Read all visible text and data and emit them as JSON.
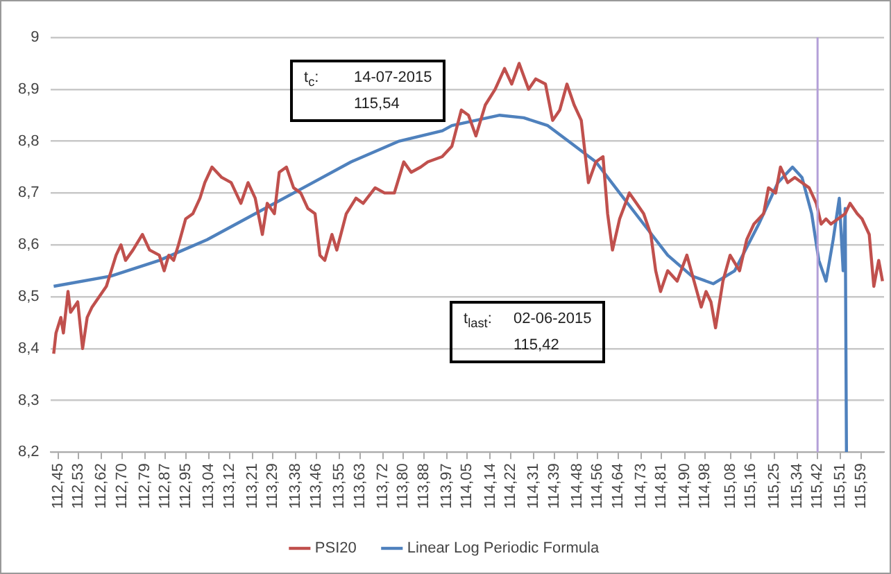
{
  "chart_data": {
    "type": "line",
    "xlim": [
      112.42,
      115.68
    ],
    "ylim": [
      8.2,
      9
    ],
    "xticks": [
      {
        "value": 112.45,
        "label": "112,45"
      },
      {
        "value": 112.53,
        "label": "112,53"
      },
      {
        "value": 112.62,
        "label": "112,62"
      },
      {
        "value": 112.7,
        "label": "112,70"
      },
      {
        "value": 112.79,
        "label": "112,79"
      },
      {
        "value": 112.87,
        "label": "112,87"
      },
      {
        "value": 112.95,
        "label": "112,95"
      },
      {
        "value": 113.04,
        "label": "113,04"
      },
      {
        "value": 113.12,
        "label": "113,12"
      },
      {
        "value": 113.21,
        "label": "113,21"
      },
      {
        "value": 113.29,
        "label": "113,29"
      },
      {
        "value": 113.38,
        "label": "113,38"
      },
      {
        "value": 113.46,
        "label": "113,46"
      },
      {
        "value": 113.55,
        "label": "113,55"
      },
      {
        "value": 113.63,
        "label": "113,63"
      },
      {
        "value": 113.72,
        "label": "113,72"
      },
      {
        "value": 113.8,
        "label": "113,80"
      },
      {
        "value": 113.88,
        "label": "113,88"
      },
      {
        "value": 113.97,
        "label": "113,97"
      },
      {
        "value": 114.05,
        "label": "114,05"
      },
      {
        "value": 114.14,
        "label": "114,14"
      },
      {
        "value": 114.22,
        "label": "114,22"
      },
      {
        "value": 114.31,
        "label": "114,31"
      },
      {
        "value": 114.39,
        "label": "114,39"
      },
      {
        "value": 114.48,
        "label": "114,48"
      },
      {
        "value": 114.56,
        "label": "114,56"
      },
      {
        "value": 114.64,
        "label": "114,64"
      },
      {
        "value": 114.73,
        "label": "114,73"
      },
      {
        "value": 114.81,
        "label": "114,81"
      },
      {
        "value": 114.9,
        "label": "114,90"
      },
      {
        "value": 114.98,
        "label": "114,98"
      },
      {
        "value": 115.08,
        "label": "115,08"
      },
      {
        "value": 115.16,
        "label": "115,16"
      },
      {
        "value": 115.25,
        "label": "115,25"
      },
      {
        "value": 115.34,
        "label": "115,34"
      },
      {
        "value": 115.42,
        "label": "115,42"
      },
      {
        "value": 115.51,
        "label": "115,51"
      },
      {
        "value": 115.59,
        "label": "115,59"
      }
    ],
    "yticks": [
      {
        "value": 8.2,
        "label": "8,2"
      },
      {
        "value": 8.3,
        "label": "8,3"
      },
      {
        "value": 8.4,
        "label": "8,4"
      },
      {
        "value": 8.5,
        "label": "8,5"
      },
      {
        "value": 8.6,
        "label": "8,6"
      },
      {
        "value": 8.7,
        "label": "8,7"
      },
      {
        "value": 8.8,
        "label": "8,8"
      },
      {
        "value": 8.9,
        "label": "8,9"
      },
      9
    ],
    "grid": "y",
    "legend": "bottom",
    "marker": "none",
    "line_style": "solid",
    "series": [
      {
        "name": "PSI20",
        "color": "#c0504d",
        "x": [
          112.433,
          112.442,
          112.461,
          112.471,
          112.489,
          112.499,
          112.527,
          112.546,
          112.564,
          112.583,
          112.611,
          112.639,
          112.658,
          112.677,
          112.696,
          112.714,
          112.743,
          112.78,
          112.808,
          112.846,
          112.865,
          112.883,
          112.902,
          112.921,
          112.949,
          112.977,
          113.005,
          113.024,
          113.052,
          113.09,
          113.127,
          113.165,
          113.193,
          113.221,
          113.249,
          113.268,
          113.296,
          113.315,
          113.343,
          113.371,
          113.399,
          113.427,
          113.455,
          113.474,
          113.493,
          113.521,
          113.54,
          113.577,
          113.615,
          113.643,
          113.69,
          113.727,
          113.765,
          113.802,
          113.831,
          113.868,
          113.896,
          113.952,
          113.99,
          114.027,
          114.055,
          114.084,
          114.121,
          114.159,
          114.196,
          114.224,
          114.253,
          114.29,
          114.318,
          114.356,
          114.384,
          114.412,
          114.44,
          114.468,
          114.496,
          114.524,
          114.553,
          114.581,
          114.599,
          114.618,
          114.646,
          114.684,
          114.712,
          114.74,
          114.768,
          114.787,
          114.806,
          114.834,
          114.871,
          114.909,
          114.937,
          114.965,
          114.984,
          115.003,
          115.021,
          115.05,
          115.078,
          115.115,
          115.143,
          115.171,
          115.209,
          115.228,
          115.256,
          115.275,
          115.303,
          115.331,
          115.359,
          115.387,
          115.415,
          115.434,
          115.453,
          115.472,
          115.5,
          115.528,
          115.547,
          115.575,
          115.594,
          115.622,
          115.64,
          115.659,
          115.674
        ],
        "values": [
          8.39,
          8.43,
          8.46,
          8.43,
          8.51,
          8.47,
          8.49,
          8.4,
          8.46,
          8.48,
          8.5,
          8.52,
          8.55,
          8.58,
          8.6,
          8.57,
          8.59,
          8.62,
          8.59,
          8.58,
          8.55,
          8.58,
          8.57,
          8.6,
          8.65,
          8.66,
          8.69,
          8.72,
          8.75,
          8.73,
          8.72,
          8.68,
          8.72,
          8.69,
          8.62,
          8.68,
          8.66,
          8.74,
          8.75,
          8.71,
          8.7,
          8.67,
          8.66,
          8.58,
          8.57,
          8.62,
          8.59,
          8.66,
          8.69,
          8.68,
          8.71,
          8.7,
          8.7,
          8.76,
          8.74,
          8.75,
          8.76,
          8.77,
          8.79,
          8.86,
          8.85,
          8.81,
          8.87,
          8.9,
          8.94,
          8.91,
          8.95,
          8.9,
          8.92,
          8.91,
          8.84,
          8.86,
          8.91,
          8.87,
          8.84,
          8.72,
          8.76,
          8.77,
          8.66,
          8.59,
          8.65,
          8.7,
          8.68,
          8.66,
          8.62,
          8.55,
          8.51,
          8.55,
          8.53,
          8.58,
          8.53,
          8.48,
          8.51,
          8.49,
          8.44,
          8.53,
          8.58,
          8.55,
          8.61,
          8.64,
          8.66,
          8.71,
          8.7,
          8.75,
          8.72,
          8.73,
          8.72,
          8.71,
          8.68,
          8.64,
          8.65,
          8.64,
          8.65,
          8.66,
          8.68,
          8.66,
          8.65,
          8.62,
          8.52,
          8.57,
          8.53
        ]
      },
      {
        "name": "Linear Log Periodic Formula",
        "color": "#4f81bd",
        "x": [
          112.433,
          112.658,
          112.846,
          113.033,
          113.221,
          113.409,
          113.596,
          113.784,
          113.953,
          113.99,
          114.177,
          114.271,
          114.365,
          114.459,
          114.553,
          114.646,
          114.74,
          114.834,
          114.928,
          115.012,
          115.096,
          115.19,
          115.265,
          115.322,
          115.359,
          115.397,
          115.425,
          115.453,
          115.481,
          115.505,
          115.52,
          115.528,
          115.533
        ],
        "values": [
          8.52,
          8.54,
          8.57,
          8.61,
          8.66,
          8.71,
          8.76,
          8.8,
          8.82,
          8.83,
          8.85,
          8.845,
          8.83,
          8.795,
          8.76,
          8.7,
          8.64,
          8.58,
          8.54,
          8.525,
          8.55,
          8.64,
          8.72,
          8.75,
          8.73,
          8.66,
          8.57,
          8.53,
          8.61,
          8.69,
          8.55,
          8.67,
          8.2
        ]
      }
    ],
    "ref_lines": [
      {
        "axis": "x",
        "value": 115.42,
        "color": "#b4a0d8"
      }
    ],
    "annotations": [
      "t$_{c}$:\t14-07-2015\n\t115,54",
      "t$_{last}$:\t02-06-2015\n\t115,42"
    ]
  }
}
